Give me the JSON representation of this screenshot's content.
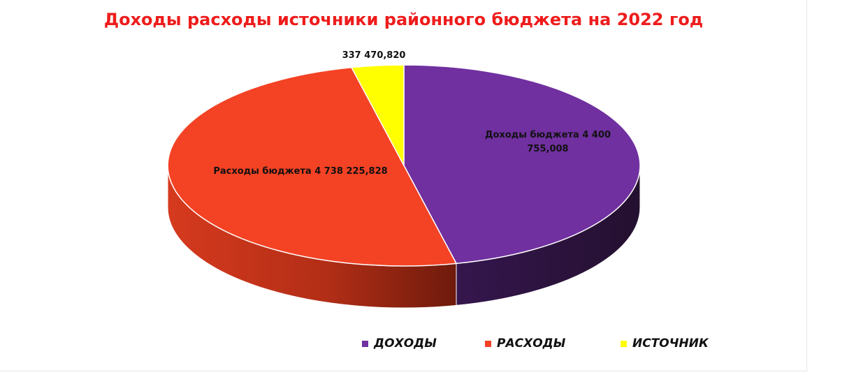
{
  "chart_data": {
    "type": "pie",
    "title": "Доходы расходы источники  районного бюджета на 2022 год",
    "series": [
      {
        "name": "ДОХОДЫ",
        "value": 4400755.008,
        "label": "Доходы бюджета 4 400 755,008",
        "color": "#7030a0"
      },
      {
        "name": "РАСХОДЫ",
        "value": 4738225.828,
        "label": "Расходы бюджета 4 738 225,828",
        "color": "#f44224"
      },
      {
        "name": "ИСТОЧНИК",
        "value": 337470.82,
        "label": "337 470,820",
        "color": "#ffff00"
      }
    ],
    "legend_position": "bottom",
    "style": "3d"
  }
}
